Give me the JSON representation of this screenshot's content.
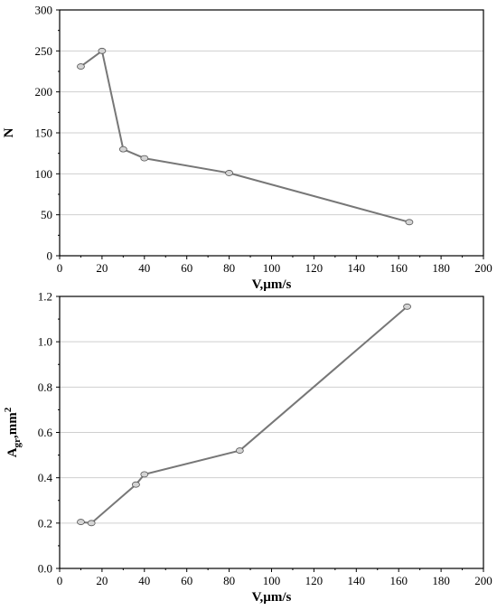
{
  "chart_data": [
    {
      "type": "line",
      "xlabel": "V,µm/s",
      "ylabel": "N",
      "xlim": [
        0,
        200
      ],
      "ylim": [
        0,
        300
      ],
      "xticks": [
        0,
        20,
        40,
        60,
        80,
        100,
        120,
        140,
        160,
        180,
        200
      ],
      "yticks": [
        0,
        50,
        100,
        150,
        200,
        250,
        300
      ],
      "xtick_labels": [
        "0",
        "20",
        "40",
        "60",
        "80",
        "100",
        "120",
        "140",
        "160",
        "180",
        "200"
      ],
      "ytick_labels": [
        "0",
        "50",
        "100",
        "150",
        "200",
        "250",
        "300"
      ],
      "grid": "horizontal",
      "legend": "none",
      "series": [
        {
          "x": [
            10,
            20,
            30,
            40,
            80,
            165
          ],
          "y": [
            231,
            250,
            130,
            119,
            101,
            41
          ]
        }
      ],
      "colors": {
        "line": "#777777",
        "marker_fill": "#d4d4d4",
        "marker_edge": "#555555",
        "grid": "#cfcfcf"
      }
    },
    {
      "type": "line",
      "xlabel": "V,µm/s",
      "ylabel": "Agr,mm2",
      "ylabel_parts": {
        "main": "A",
        "sub": "gr",
        "mid": ",mm",
        "sup": "2"
      },
      "xlim": [
        0,
        200
      ],
      "ylim": [
        0,
        1.2
      ],
      "xticks": [
        0,
        20,
        40,
        60,
        80,
        100,
        120,
        140,
        160,
        180,
        200
      ],
      "yticks": [
        0,
        0.2,
        0.4,
        0.6,
        0.8,
        1.0,
        1.2
      ],
      "xtick_labels": [
        "0",
        "20",
        "40",
        "60",
        "80",
        "100",
        "120",
        "140",
        "160",
        "180",
        "200"
      ],
      "ytick_labels": [
        "0.0",
        "0.2",
        "0.4",
        "0.6",
        "0.8",
        "1.0",
        "1.2"
      ],
      "grid": "horizontal",
      "legend": "none",
      "series": [
        {
          "x": [
            10,
            15,
            36,
            40,
            85,
            164
          ],
          "y": [
            0.205,
            0.2,
            0.37,
            0.415,
            0.52,
            1.155
          ]
        }
      ],
      "colors": {
        "line": "#777777",
        "marker_fill": "#d4d4d4",
        "marker_edge": "#555555",
        "grid": "#cfcfcf"
      }
    }
  ]
}
